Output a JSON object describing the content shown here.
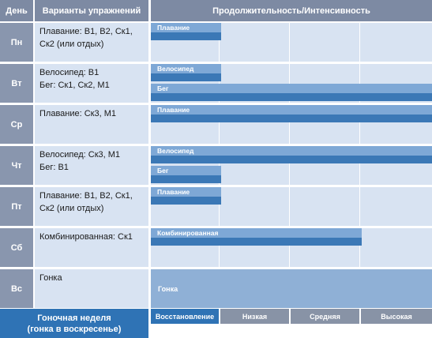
{
  "header": {
    "day": "День",
    "exercises": "Варианты упражнений",
    "duration": "Продолжительность/Интенсивность"
  },
  "rows": [
    {
      "day": "Пн",
      "exercises": "Плавание: В1, В2, Ск1,\nСк2 (или отдых)",
      "bars": [
        {
          "label": "Плавание",
          "level": 0.25
        }
      ]
    },
    {
      "day": "Вт",
      "exercises": "Велосипед: В1\nБег: Ск1, Ск2, М1",
      "bars": [
        {
          "label": "Велосипед",
          "level": 0.25
        },
        {
          "label": "Бег",
          "level": 1.0
        }
      ]
    },
    {
      "day": "Ср",
      "exercises": "Плавание: Ск3, М1",
      "bars": [
        {
          "label": "Плавание",
          "level": 1.0
        }
      ]
    },
    {
      "day": "Чт",
      "exercises": "Велосипед: Ск3, М1\nБег: В1",
      "bars": [
        {
          "label": "Велосипед",
          "level": 1.0
        },
        {
          "label": "Бег",
          "level": 0.25
        }
      ]
    },
    {
      "day": "Пт",
      "exercises": "Плавание: В1, В2, Ск1,\nСк2 (или отдых)",
      "bars": [
        {
          "label": "Плавание",
          "level": 0.25
        }
      ]
    },
    {
      "day": "Сб",
      "exercises": "Комбинированная: Ск1",
      "bars": [
        {
          "label": "Комбинированная",
          "level": 0.75
        }
      ]
    },
    {
      "day": "Вс",
      "exercises": "Гонка",
      "bars": [
        {
          "label": "Гонка",
          "level": 1.0
        }
      ]
    }
  ],
  "footer": {
    "title": "Гоночная неделя\n(гонка в воскресенье)",
    "levels": [
      "Восстановление",
      "Низкая",
      "Средняя",
      "Высокая"
    ]
  },
  "colors": {
    "bar_light": "#7ea8d6",
    "bar_dark": "#3b78b6",
    "row_bg": "#d8e3f2",
    "header_bg": "#7d8aa3",
    "accent": "#2f73b5"
  }
}
